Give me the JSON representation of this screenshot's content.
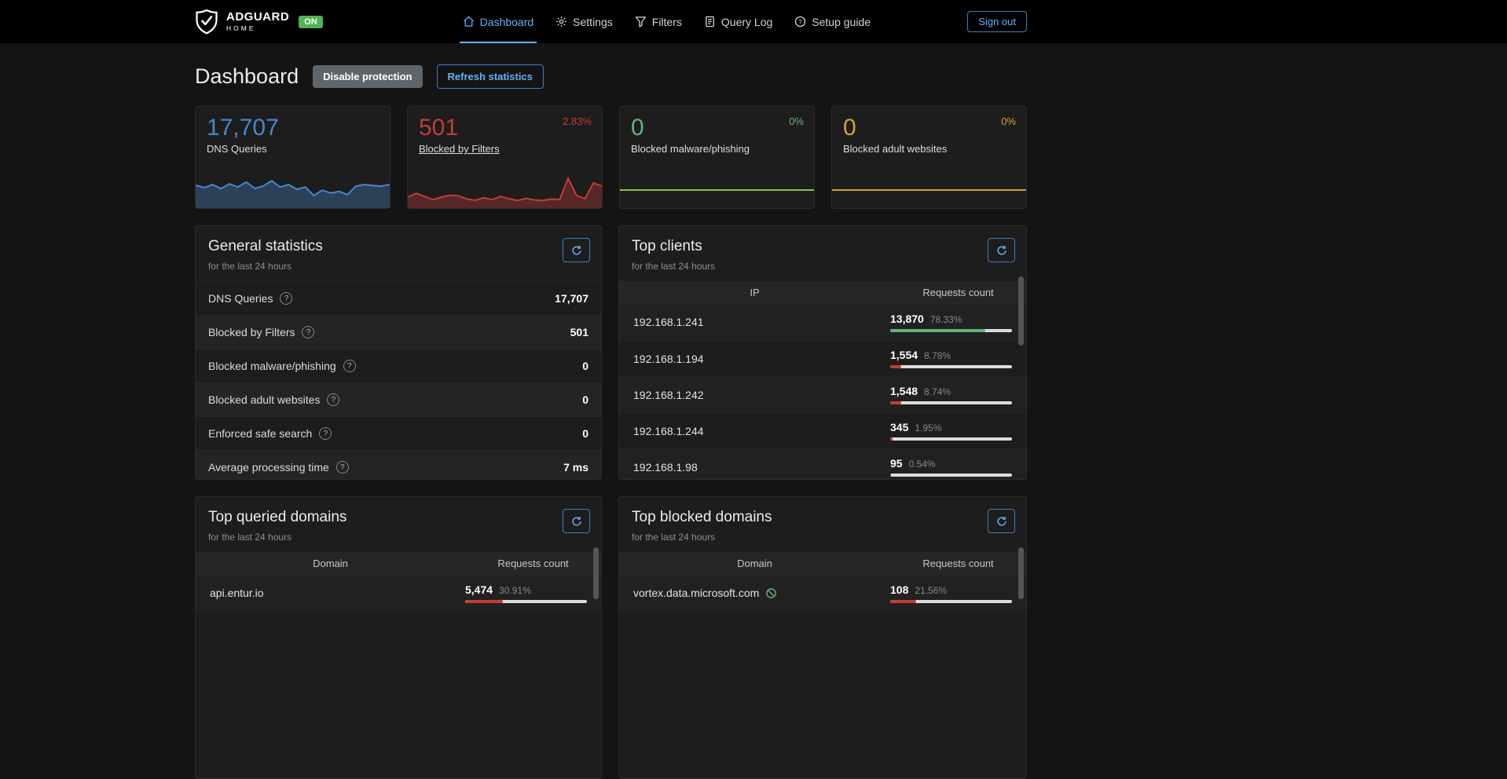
{
  "nav": {
    "brand": {
      "name": "ADGUARD",
      "sub": "HOME",
      "status_badge": "ON"
    },
    "items": [
      {
        "label": "Dashboard",
        "icon": "dashboard-home-icon",
        "active": true
      },
      {
        "label": "Settings",
        "icon": "gear-icon",
        "active": false
      },
      {
        "label": "Filters",
        "icon": "filter-funnel-icon",
        "active": false
      },
      {
        "label": "Query Log",
        "icon": "query-log-icon",
        "active": false
      },
      {
        "label": "Setup guide",
        "icon": "help-circle-icon",
        "active": false
      }
    ],
    "sign_out_label": "Sign out"
  },
  "header": {
    "title": "Dashboard",
    "disable_protection_label": "Disable protection",
    "refresh_statistics_label": "Refresh statistics"
  },
  "icons": {
    "help_glyph": "?"
  },
  "colors": {
    "accent_blue": "#66b0f8",
    "blue": "#4a86c9",
    "red": "#c23d38",
    "green": "#67b279",
    "lime": "#8bc34a",
    "yellow": "#d1a336",
    "bar_track": "#dcdcdc"
  },
  "stat_cards": [
    {
      "id": "dns-queries",
      "value": "17,707",
      "label": "DNS Queries",
      "color": "#4a86c9"
    },
    {
      "id": "blocked-filters",
      "value": "501",
      "label": "Blocked by Filters",
      "percent": "2.83%",
      "color": "#c23d38",
      "is_link": true
    },
    {
      "id": "blocked-malware",
      "value": "0",
      "label": "Blocked malware/phishing",
      "percent": "0%",
      "color": "#67b279"
    },
    {
      "id": "blocked-adult",
      "value": "0",
      "label": "Blocked adult websites",
      "percent": "0%",
      "color": "#d1a336"
    }
  ],
  "general_statistics": {
    "title": "General statistics",
    "subtitle": "for the last 24 hours",
    "rows": [
      {
        "label": "DNS Queries",
        "value": "17,707"
      },
      {
        "label": "Blocked by Filters",
        "value": "501"
      },
      {
        "label": "Blocked malware/phishing",
        "value": "0"
      },
      {
        "label": "Blocked adult websites",
        "value": "0"
      },
      {
        "label": "Enforced safe search",
        "value": "0"
      },
      {
        "label": "Average processing time",
        "value": "7 ms"
      }
    ]
  },
  "top_clients": {
    "title": "Top clients",
    "subtitle": "for the last 24 hours",
    "columns": [
      "IP",
      "Requests count"
    ],
    "rows": [
      {
        "ip": "192.168.1.241",
        "count": "13,870",
        "percent": "78.33%",
        "bar_percent": 78.33,
        "bar_color": "green"
      },
      {
        "ip": "192.168.1.194",
        "count": "1,554",
        "percent": "8.78%",
        "bar_percent": 8.78,
        "bar_color": "red"
      },
      {
        "ip": "192.168.1.242",
        "count": "1,548",
        "percent": "8.74%",
        "bar_percent": 8.74,
        "bar_color": "red"
      },
      {
        "ip": "192.168.1.244",
        "count": "345",
        "percent": "1.95%",
        "bar_percent": 1.95,
        "bar_color": "red"
      },
      {
        "ip": "192.168.1.98",
        "count": "95",
        "percent": "0.54%",
        "bar_percent": 0.54,
        "bar_color": "red"
      }
    ]
  },
  "top_queried_domains": {
    "title": "Top queried domains",
    "subtitle": "for the last 24 hours",
    "columns": [
      "Domain",
      "Requests count"
    ],
    "rows": [
      {
        "domain": "api.entur.io",
        "count": "5,474",
        "percent": "30.91%",
        "bar_percent": 30.91,
        "bar_color": "red"
      }
    ]
  },
  "top_blocked_domains": {
    "title": "Top blocked domains",
    "subtitle": "for the last 24 hours",
    "columns": [
      "Domain",
      "Requests count"
    ],
    "rows": [
      {
        "domain": "vortex.data.microsoft.com",
        "count": "108",
        "percent": "21.56%",
        "bar_percent": 21.56,
        "bar_color": "red",
        "blocked_icon": true
      }
    ]
  },
  "chart_data": [
    {
      "type": "area",
      "name": "dns-queries-sparkline",
      "title": "DNS Queries over last 24 hours",
      "color": "#4a86c9",
      "fill_opacity": 0.35,
      "y_unit": "queries (relative, estimated 0-100)",
      "values": [
        58,
        50,
        60,
        47,
        62,
        52,
        68,
        48,
        55,
        72,
        52,
        60,
        45,
        52,
        25,
        42,
        33,
        38,
        28,
        55,
        60,
        57,
        55,
        60
      ]
    },
    {
      "type": "area",
      "name": "blocked-filters-sparkline",
      "title": "Blocked by Filters over last 24 hours",
      "color": "#c23d38",
      "fill_opacity": 0.35,
      "y_unit": "queries (relative, estimated 0-100)",
      "values": [
        20,
        32,
        22,
        12,
        20,
        26,
        24,
        14,
        10,
        18,
        12,
        22,
        15,
        9,
        16,
        11,
        9,
        14,
        12,
        80,
        25,
        15,
        65,
        55
      ]
    },
    {
      "type": "line",
      "name": "blocked-malware-sparkline",
      "title": "Blocked malware/phishing over last 24 hours",
      "color": "#8bc34a",
      "fill_opacity": 0,
      "values": [
        0,
        0,
        0,
        0,
        0,
        0,
        0,
        0,
        0,
        0,
        0,
        0,
        0,
        0,
        0,
        0,
        0,
        0,
        0,
        0,
        0,
        0,
        0,
        0
      ]
    },
    {
      "type": "line",
      "name": "blocked-adult-sparkline",
      "title": "Blocked adult websites over last 24 hours",
      "color": "#d1a336",
      "fill_opacity": 0,
      "values": [
        0,
        0,
        0,
        0,
        0,
        0,
        0,
        0,
        0,
        0,
        0,
        0,
        0,
        0,
        0,
        0,
        0,
        0,
        0,
        0,
        0,
        0,
        0,
        0
      ]
    }
  ]
}
